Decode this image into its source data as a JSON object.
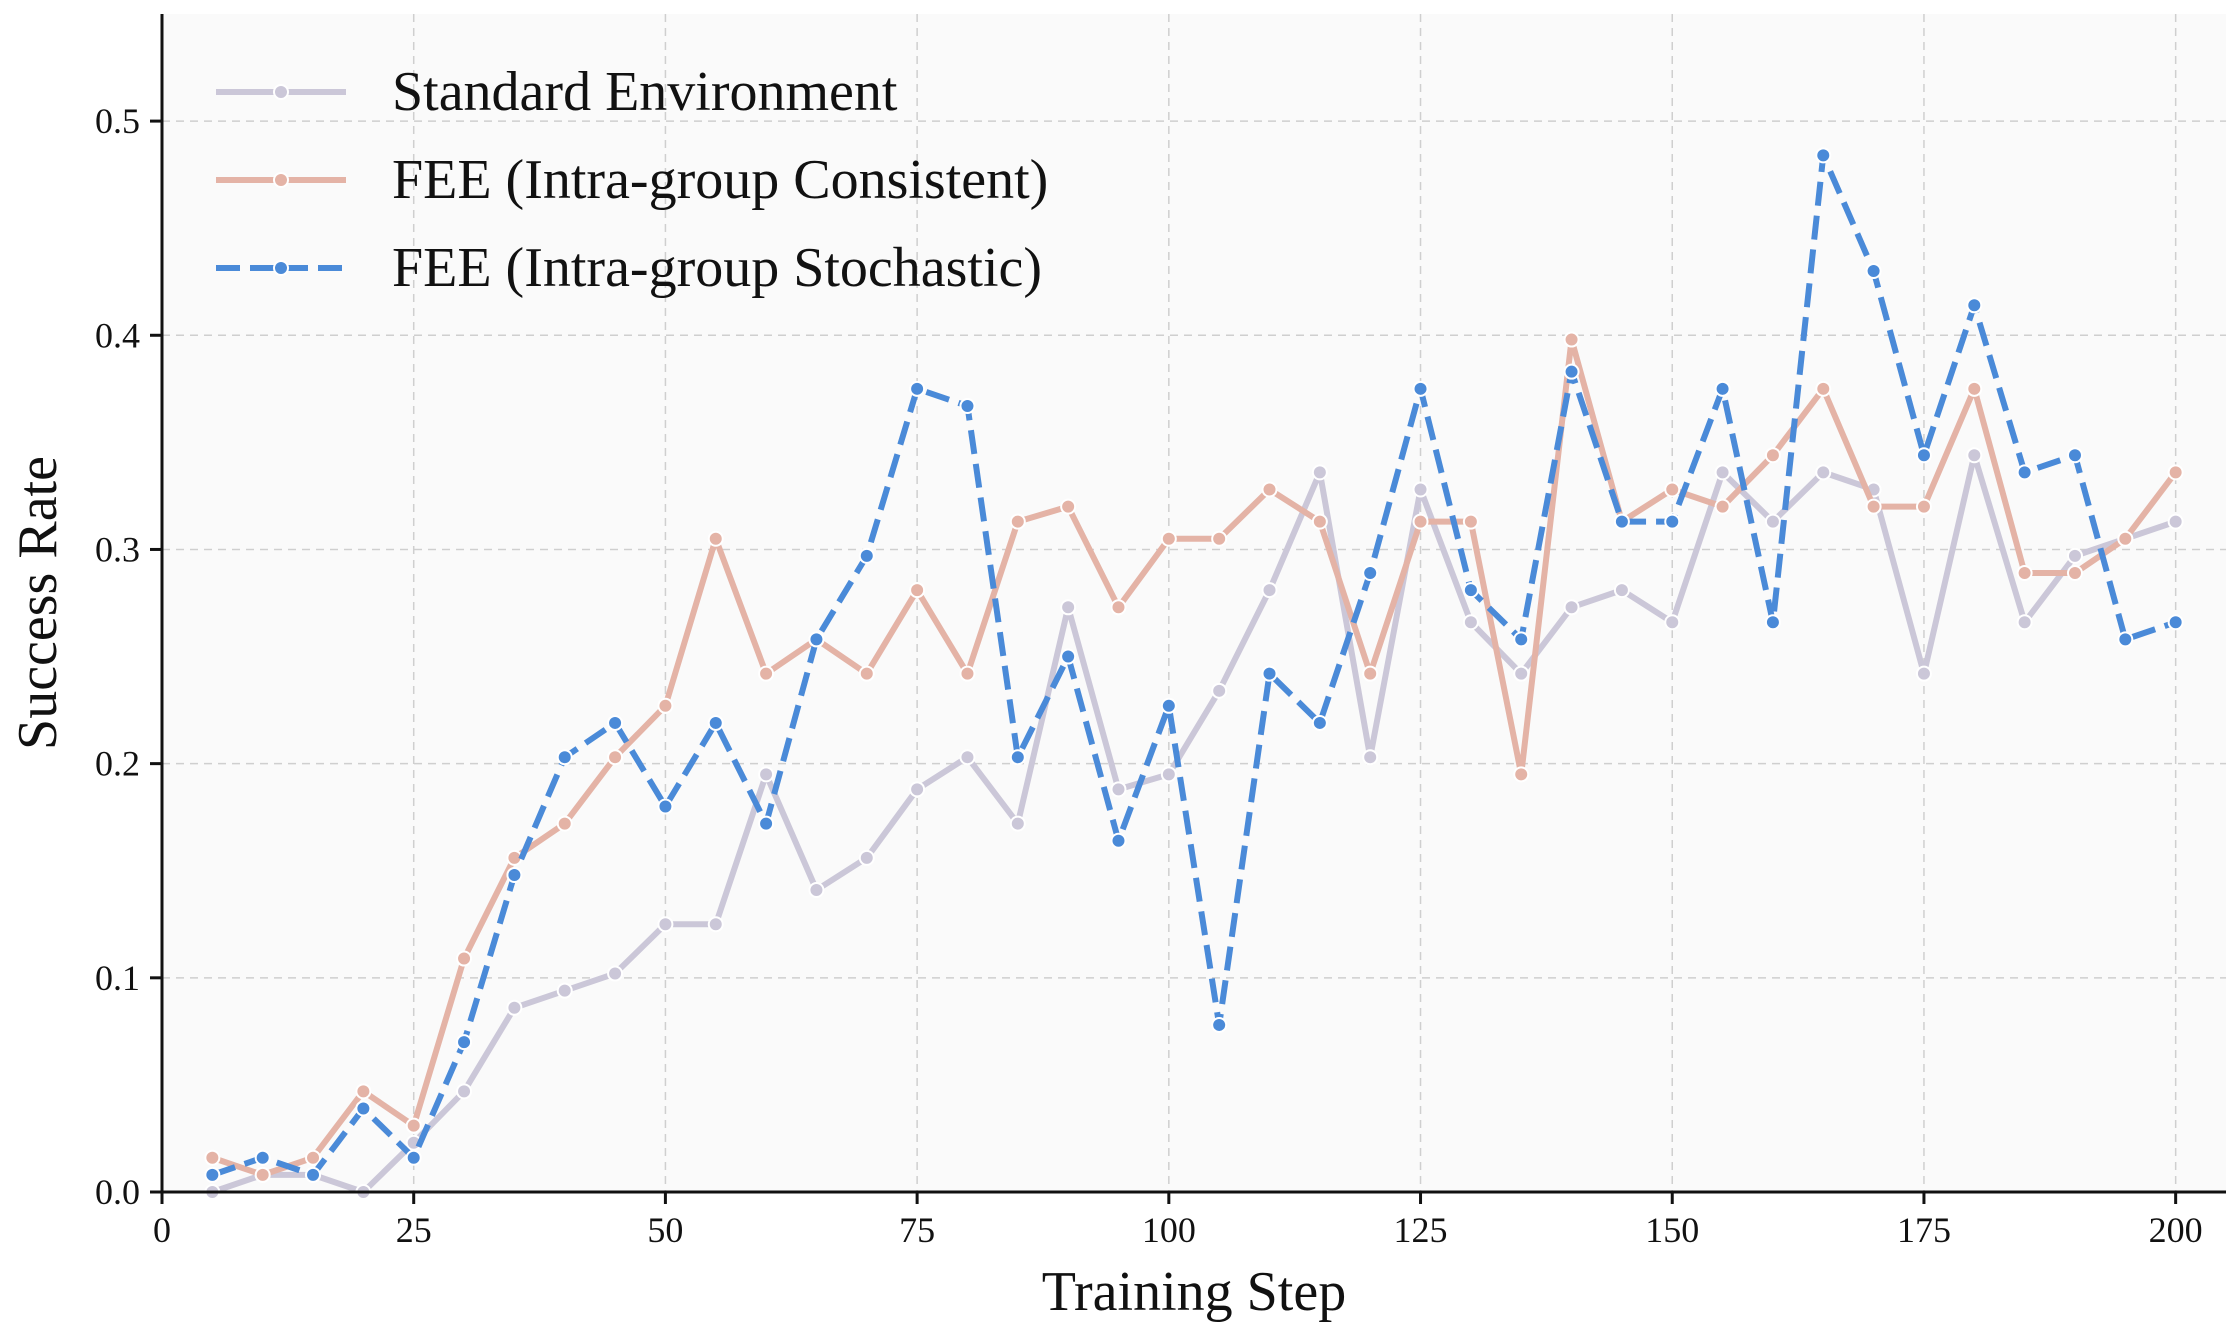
{
  "chart_data": {
    "type": "line",
    "xlabel": "Training Step",
    "ylabel": "Success Rate",
    "xlim": [
      0,
      205
    ],
    "ylim": [
      0,
      0.55
    ],
    "x_ticks": [
      0,
      25,
      50,
      75,
      100,
      125,
      150,
      175,
      200
    ],
    "x_tick_labels": [
      "0",
      "25",
      "50",
      "75",
      "100",
      "125",
      "150",
      "175",
      "200"
    ],
    "y_ticks": [
      0,
      0.1,
      0.2,
      0.3,
      0.4,
      0.5
    ],
    "y_tick_labels": [
      "0.0",
      "0.1",
      "0.2",
      "0.3",
      "0.4",
      "0.5"
    ],
    "grid": true,
    "legend_position": "top-left",
    "x": [
      5,
      10,
      15,
      20,
      25,
      30,
      35,
      40,
      45,
      50,
      55,
      60,
      65,
      70,
      75,
      80,
      85,
      90,
      95,
      100,
      105,
      110,
      115,
      120,
      125,
      130,
      135,
      140,
      145,
      150,
      155,
      160,
      165,
      170,
      175,
      180,
      185,
      190,
      195,
      200
    ],
    "series": [
      {
        "name": "Standard Environment",
        "color": "#cbc7d8",
        "dash": "solid",
        "values": [
          0.0,
          0.008,
          0.008,
          0.0,
          0.023,
          0.047,
          0.086,
          0.094,
          0.102,
          0.125,
          0.125,
          0.195,
          0.141,
          0.156,
          0.188,
          0.203,
          0.172,
          0.273,
          0.188,
          0.195,
          0.234,
          0.281,
          0.336,
          0.203,
          0.328,
          0.266,
          0.242,
          0.273,
          0.281,
          0.266,
          0.336,
          0.313,
          0.336,
          0.328,
          0.242,
          0.344,
          0.266,
          0.297,
          0.305,
          0.313
        ]
      },
      {
        "name": "FEE (Intra-group Consistent)",
        "color": "#e4b3a6",
        "dash": "solid",
        "values": [
          0.016,
          0.008,
          0.016,
          0.047,
          0.031,
          0.109,
          0.156,
          0.172,
          0.203,
          0.227,
          0.305,
          0.242,
          0.258,
          0.242,
          0.281,
          0.242,
          0.313,
          0.32,
          0.273,
          0.305,
          0.305,
          0.328,
          0.313,
          0.242,
          0.313,
          0.313,
          0.195,
          0.398,
          0.313,
          0.328,
          0.32,
          0.344,
          0.375,
          0.32,
          0.32,
          0.375,
          0.289,
          0.289,
          0.305,
          0.336
        ]
      },
      {
        "name": "FEE (Intra-group Stochastic)",
        "color": "#4a8ad8",
        "dash": "dashed",
        "values": [
          0.008,
          0.016,
          0.008,
          0.039,
          0.016,
          0.07,
          0.148,
          0.203,
          0.219,
          0.18,
          0.219,
          0.172,
          0.258,
          0.297,
          0.375,
          0.367,
          0.203,
          0.25,
          0.164,
          0.227,
          0.078,
          0.242,
          0.219,
          0.289,
          0.375,
          0.281,
          0.258,
          0.383,
          0.313,
          0.313,
          0.375,
          0.266,
          0.484,
          0.43,
          0.344,
          0.414,
          0.336,
          0.344,
          0.258,
          0.266
        ]
      }
    ]
  }
}
